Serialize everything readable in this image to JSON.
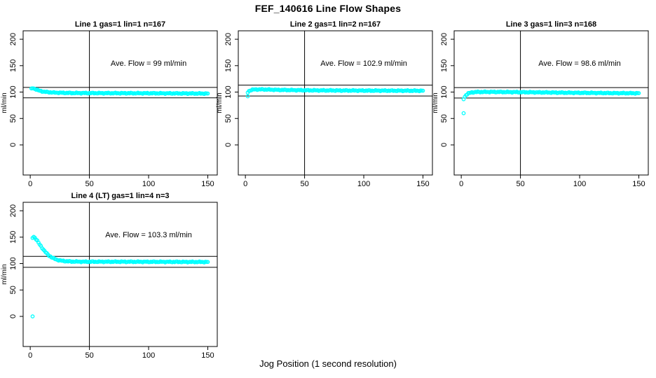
{
  "page": {
    "title": "FEF_140616  Line Flow Shapes",
    "xlabel": "Jog Position (1 second resolution)",
    "background": "#ffffff"
  },
  "colors": {
    "points": "#00ffff",
    "axis": "#000000",
    "text": "#000000",
    "background": "#ffffff"
  },
  "chart_data": [
    {
      "type": "scatter",
      "title": "Line 1 gas=1 lin=1 n=167",
      "annotation": "Ave. Flow =  99  ml/min",
      "annotation_pos": [
        100,
        150
      ],
      "ave_flow_ml_min": 99,
      "n": 167,
      "ylabel": "ml/min",
      "x_ticks": [
        0,
        50,
        100,
        150
      ],
      "y_ticks": [
        0,
        50,
        100,
        150,
        200
      ],
      "xlim": [
        -6,
        158
      ],
      "ylim": [
        -57,
        216
      ],
      "point_color": "#00ffff",
      "ref_hlines": [
        108.9,
        89.1
      ],
      "ref_vline": 50,
      "grid": false,
      "legend": "none",
      "profile": [
        [
          1,
          106
        ],
        [
          2,
          107.5
        ],
        [
          4,
          106
        ],
        [
          7,
          103
        ],
        [
          12,
          100.5
        ],
        [
          20,
          99
        ],
        [
          35,
          98.2
        ],
        [
          60,
          98
        ],
        [
          100,
          97.8
        ],
        [
          150,
          97.2
        ]
      ],
      "outliers": []
    },
    {
      "type": "scatter",
      "title": "Line 2 gas=1 lin=2 n=167",
      "annotation": "Ave. Flow =  102.9  ml/min",
      "annotation_pos": [
        100,
        150
      ],
      "ave_flow_ml_min": 102.9,
      "n": 167,
      "ylabel": "ml/min",
      "x_ticks": [
        0,
        50,
        100,
        150
      ],
      "y_ticks": [
        0,
        50,
        100,
        150,
        200
      ],
      "xlim": [
        -6,
        158
      ],
      "ylim": [
        -57,
        216
      ],
      "point_color": "#00ffff",
      "ref_hlines": [
        113.2,
        92.6
      ],
      "ref_vline": 50,
      "grid": false,
      "legend": "none",
      "profile": [
        [
          2,
          99.5
        ],
        [
          3,
          102
        ],
        [
          5,
          104
        ],
        [
          8,
          105
        ],
        [
          15,
          105
        ],
        [
          30,
          104
        ],
        [
          60,
          103.2
        ],
        [
          100,
          102.8
        ],
        [
          150,
          102.5
        ]
      ],
      "outliers": [
        [
          2,
          92
        ]
      ]
    },
    {
      "type": "scatter",
      "title": "Line 3 gas=1 lin=3 n=168",
      "annotation": "Ave. Flow =  98.6  ml/min",
      "annotation_pos": [
        100,
        150
      ],
      "ave_flow_ml_min": 98.6,
      "n": 168,
      "ylabel": "ml/min",
      "x_ticks": [
        0,
        50,
        100,
        150
      ],
      "y_ticks": [
        0,
        50,
        100,
        150,
        200
      ],
      "xlim": [
        -6,
        158
      ],
      "ylim": [
        -57,
        216
      ],
      "point_color": "#00ffff",
      "ref_hlines": [
        108.5,
        88.7
      ],
      "ref_vline": 50,
      "grid": false,
      "legend": "none",
      "profile": [
        [
          2,
          87
        ],
        [
          3,
          91
        ],
        [
          4,
          94.5
        ],
        [
          6,
          97.5
        ],
        [
          9,
          99.5
        ],
        [
          14,
          100.2
        ],
        [
          25,
          100.3
        ],
        [
          50,
          99.8
        ],
        [
          90,
          98.8
        ],
        [
          130,
          98
        ],
        [
          150,
          97.8
        ]
      ],
      "outliers": [
        [
          2,
          60
        ]
      ]
    },
    {
      "type": "scatter",
      "title": "Line 4 (LT) gas=1 lin=4 n=3",
      "annotation": "Ave. Flow =  103.3  ml/min",
      "annotation_pos": [
        100,
        150
      ],
      "ave_flow_ml_min": 103.3,
      "n": 3,
      "ylabel": "ml/min",
      "x_ticks": [
        0,
        50,
        100,
        150
      ],
      "y_ticks": [
        0,
        50,
        100,
        150,
        200
      ],
      "xlim": [
        -6,
        158
      ],
      "ylim": [
        -57,
        216
      ],
      "point_color": "#00ffff",
      "ref_hlines": [
        113.6,
        93.0
      ],
      "ref_vline": 50,
      "grid": false,
      "legend": "none",
      "profile": [
        [
          2,
          149
        ],
        [
          3,
          150.5
        ],
        [
          4,
          149
        ],
        [
          5,
          146
        ],
        [
          6,
          143
        ],
        [
          8,
          136
        ],
        [
          10,
          130
        ],
        [
          12,
          124
        ],
        [
          14,
          119
        ],
        [
          16,
          115
        ],
        [
          18,
          112
        ],
        [
          20,
          109.5
        ],
        [
          23,
          107
        ],
        [
          26,
          105.5
        ],
        [
          30,
          104.5
        ],
        [
          35,
          103.8
        ],
        [
          45,
          103.5
        ],
        [
          70,
          103.5
        ],
        [
          110,
          103.3
        ],
        [
          150,
          103
        ]
      ],
      "outliers": [
        [
          2,
          0
        ]
      ]
    }
  ]
}
